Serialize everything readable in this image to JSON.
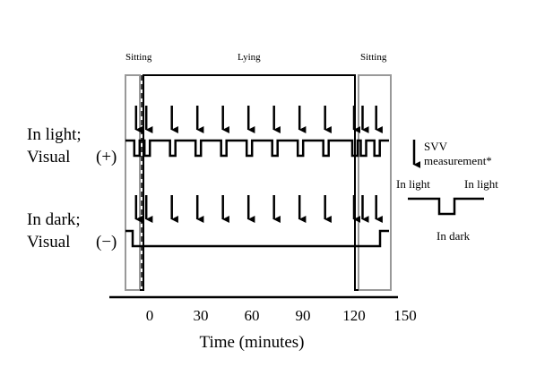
{
  "phases": {
    "sitting_left": "Sitting",
    "lying": "Lying",
    "sitting_right": "Sitting"
  },
  "rows": {
    "light": {
      "line1": "In light;",
      "line2": "Visual",
      "sign": "(+)"
    },
    "dark": {
      "line1": "In dark;",
      "line2": "Visual",
      "sign": "(−)"
    }
  },
  "legend": {
    "arrow_icon": "down-arrow-icon",
    "svv_line1": "SVV",
    "svv_line2": "measurement*",
    "in_light_left": "In light",
    "in_light_right": "In light",
    "in_dark": "In dark"
  },
  "axis": {
    "ticks": [
      "0",
      "30",
      "60",
      "90",
      "120",
      "150"
    ],
    "label": "Time (minutes)"
  },
  "schedule": {
    "measurement_times_min": [
      -8,
      -2,
      13,
      28,
      43,
      58,
      73,
      88,
      103,
      120,
      125,
      133
    ]
  }
}
